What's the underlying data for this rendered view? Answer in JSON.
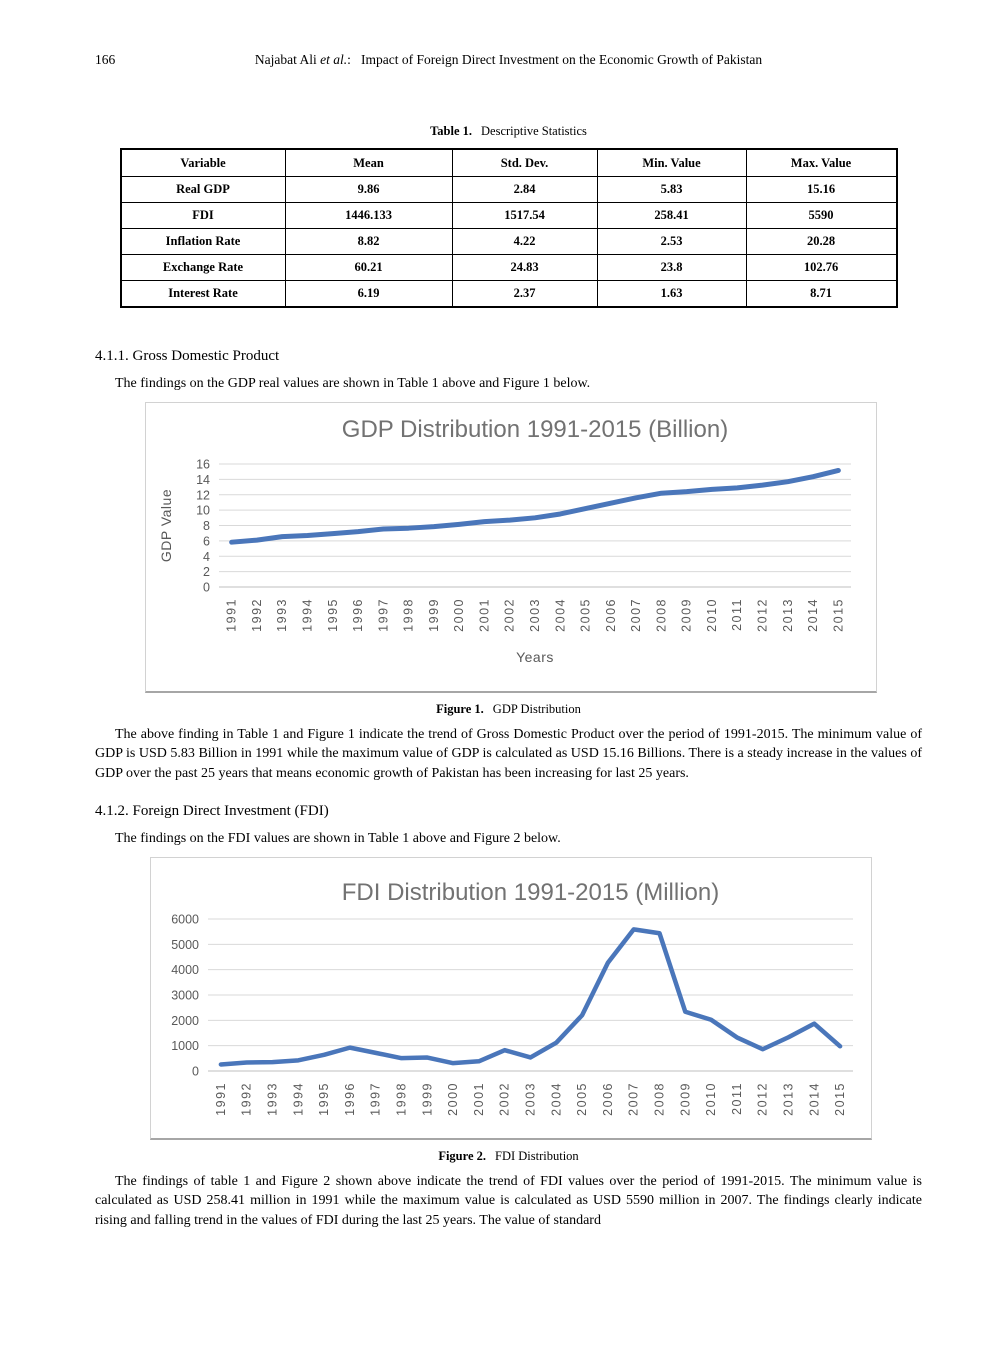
{
  "page": {
    "number": "166",
    "running_title_prefix": "Najabat Ali ",
    "running_title_italic": "et al.",
    "running_title_suffix": ":   Impact of Foreign Direct Investment on the Economic Growth of Pakistan"
  },
  "table": {
    "caption_label": "Table 1.",
    "caption_text": "Descriptive Statistics",
    "headers": [
      "Variable",
      "Mean",
      "Std. Dev.",
      "Min. Value",
      "Max. Value"
    ],
    "rows": [
      [
        "Real GDP",
        "9.86",
        "2.84",
        "5.83",
        "15.16"
      ],
      [
        "FDI",
        "1446.133",
        "1517.54",
        "258.41",
        "5590"
      ],
      [
        "Inflation Rate",
        "8.82",
        "4.22",
        "2.53",
        "20.28"
      ],
      [
        "Exchange Rate",
        "60.21",
        "24.83",
        "23.8",
        "102.76"
      ],
      [
        "Interest Rate",
        "6.19",
        "2.37",
        "1.63",
        "8.71"
      ]
    ]
  },
  "sections": [
    {
      "heading": "4.1.1. Gross Domestic Product",
      "intro": "The findings on the GDP real values are shown in Table 1 above and Figure 1 below.",
      "figure_caption_label": "Figure 1.",
      "figure_caption_text": "GDP Distribution",
      "body": "The above finding in Table 1 and Figure 1 indicate the trend of Gross Domestic Product over the period of 1991-2015. The minimum value of GDP is USD 5.83 Billion in 1991 while the maximum value of GDP is calculated as USD 15.16 Billions. There is a steady increase in the values of GDP over the past 25 years that means economic growth of Pakistan has been increasing for last 25 years."
    },
    {
      "heading": "4.1.2. Foreign Direct Investment (FDI)",
      "intro": "The findings on the FDI values are shown in Table 1 above and Figure 2 below.",
      "figure_caption_label": "Figure 2.",
      "figure_caption_text": "FDI Distribution",
      "body": "The findings of table 1 and Figure 2 shown above indicate the trend of FDI values over the period of 1991-2015. The minimum value is calculated as USD 258.41 million in 1991 while the maximum value is calculated as USD 5590 million in 2007. The findings clearly indicate rising and falling trend in the values of FDI during the last 25 years. The value of standard"
    }
  ],
  "chart_data": [
    {
      "type": "line",
      "title": "GDP Distribution 1991-2015 (Billion)",
      "xlabel": "Years",
      "ylabel": "GDP Value",
      "x": [
        "1991",
        "1992",
        "1993",
        "1994",
        "1995",
        "1996",
        "1997",
        "1998",
        "1999",
        "2000",
        "2001",
        "2002",
        "2003",
        "2004",
        "2005",
        "2006",
        "2007",
        "2008",
        "2009",
        "2010",
        "2011",
        "2012",
        "2013",
        "2014",
        "2015"
      ],
      "values": [
        5.83,
        6.1,
        6.55,
        6.7,
        6.95,
        7.2,
        7.55,
        7.65,
        7.85,
        8.15,
        8.5,
        8.7,
        9.0,
        9.5,
        10.2,
        10.9,
        11.6,
        12.2,
        12.4,
        12.7,
        12.9,
        13.25,
        13.7,
        14.35,
        15.16
      ],
      "ylim": [
        0,
        16
      ],
      "ytick_step": 2,
      "grid": true,
      "legend": "none",
      "line_color": "#4a76ba",
      "tick_color": "#595959",
      "title_color": "#727272",
      "gridline_color": "#d9d9d9"
    },
    {
      "type": "line",
      "title": "FDI Distribution 1991-2015 (Million)",
      "xlabel": "",
      "ylabel": "",
      "x": [
        "1991",
        "1992",
        "1993",
        "1994",
        "1995",
        "1996",
        "1997",
        "1998",
        "1999",
        "2000",
        "2001",
        "2002",
        "2003",
        "2004",
        "2005",
        "2006",
        "2007",
        "2008",
        "2009",
        "2010",
        "2011",
        "2012",
        "2013",
        "2014",
        "2015"
      ],
      "values": [
        258,
        336,
        349,
        421,
        639,
        922,
        716,
        506,
        532,
        309,
        383,
        823,
        534,
        1118,
        2201,
        4273,
        5590,
        5438,
        2338,
        2022,
        1326,
        859,
        1333,
        1868,
        975
      ],
      "ylim": [
        0,
        6000
      ],
      "ytick_step": 1000,
      "grid": true,
      "legend": "none",
      "line_color": "#4a76ba",
      "tick_color": "#595959",
      "title_color": "#727272",
      "gridline_color": "#d9d9d9"
    }
  ]
}
